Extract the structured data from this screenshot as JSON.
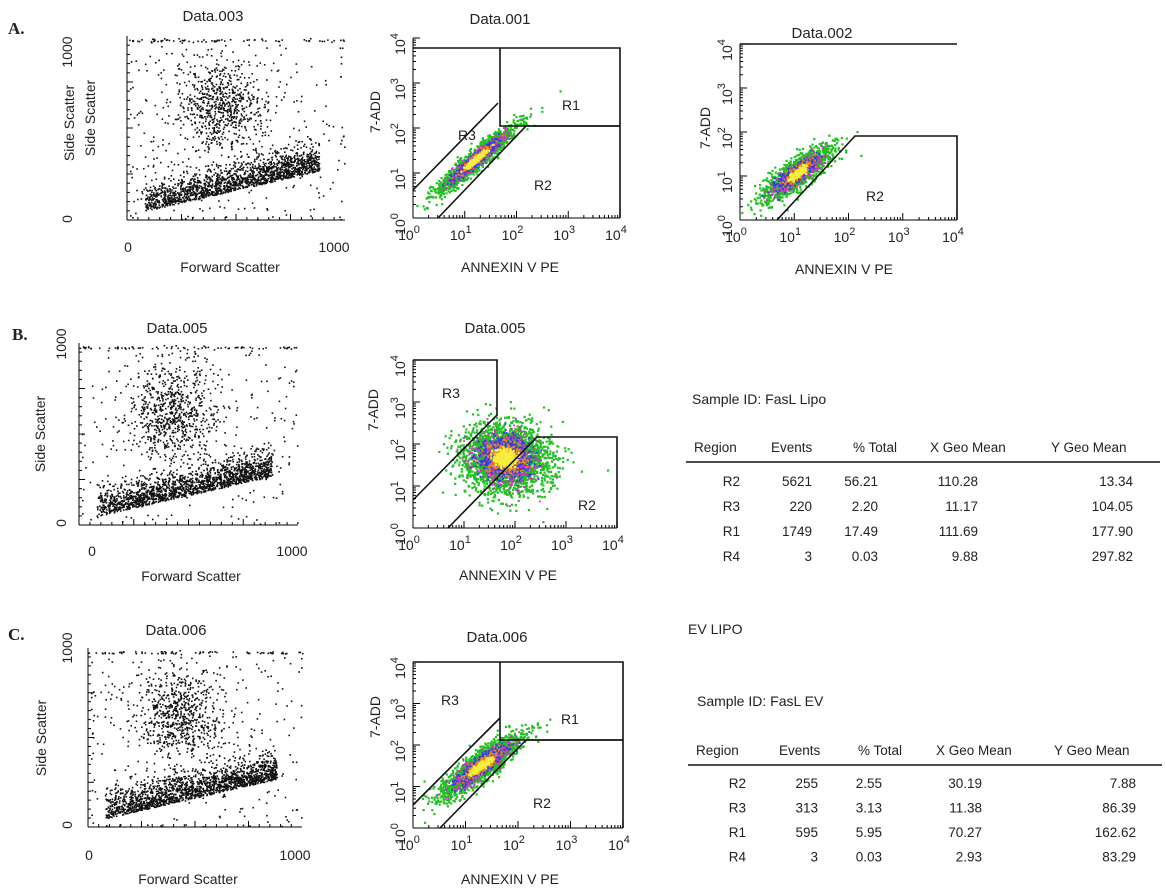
{
  "colors": {
    "dots": "#111111",
    "density_green": "#22c022",
    "density_magenta": "#d030c0",
    "density_blue": "#2840e0",
    "density_orange": "#f08a1c",
    "density_yellow": "#f6ee3a",
    "gate_line": "#111111"
  },
  "panels": {
    "A": {
      "letter": "A."
    },
    "B": {
      "letter": "B."
    },
    "C": {
      "letter": "C."
    }
  },
  "scatter_labels": {
    "A": {
      "title": "Data.003",
      "xlabel": "Forward Scatter",
      "ylabel": "Side Scatter",
      "ylabel2": "Side Scatter",
      "x_ticks": [
        "0",
        "1000"
      ],
      "y_ticks": [
        "0",
        "1000"
      ]
    },
    "B": {
      "title": "Data.005",
      "xlabel": "Forward Scatter",
      "ylabel": "Side Scatter",
      "x_ticks": [
        "0",
        "1000"
      ],
      "y_ticks": [
        "0",
        "1000"
      ]
    },
    "C": {
      "title": "Data.006",
      "xlabel": "Forward Scatter",
      "ylabel": "Side Scatter",
      "x_ticks": [
        "0",
        "1000"
      ],
      "y_ticks": [
        "0",
        "1000"
      ]
    }
  },
  "annexin_labels": {
    "A1": {
      "title": "Data.001",
      "xlabel": "ANNEXIN V PE",
      "ylabel": "7-ADD",
      "regions": [
        "R1",
        "R2",
        "R3"
      ]
    },
    "A2": {
      "title": "Data.002",
      "xlabel": "ANNEXIN V PE",
      "ylabel": "7-ADD",
      "regions": [
        "R2"
      ]
    },
    "B": {
      "title": "Data.005",
      "xlabel": "ANNEXIN V PE",
      "ylabel": "7-ADD",
      "regions": [
        "R3",
        "R2"
      ]
    },
    "C": {
      "title": "Data.006",
      "xlabel": "ANNEXIN V PE",
      "ylabel": "7-ADD",
      "regions": [
        "R3",
        "R1",
        "R2"
      ]
    }
  },
  "tick_base": "10",
  "tick_exps": [
    "0",
    "1",
    "2",
    "3",
    "4"
  ],
  "ev_lipo_label": "EV LIPO",
  "tables": [
    {
      "sample_id": "Sample ID: FasL Lipo",
      "headers": [
        "Region",
        "Events",
        "% Total",
        "X Geo Mean",
        "Y Geo Mean"
      ],
      "rows": [
        [
          "R2",
          "5621",
          "56.21",
          "110.28",
          "13.34"
        ],
        [
          "R3",
          "220",
          "2.20",
          "11.17",
          "104.05"
        ],
        [
          "R1",
          "1749",
          "17.49",
          "111.69",
          "177.90"
        ],
        [
          "R4",
          "3",
          "0.03",
          "9.88",
          "297.82"
        ]
      ]
    },
    {
      "sample_id": "Sample ID: FasL EV",
      "headers": [
        "Region",
        "Events",
        "% Total",
        "X Geo Mean",
        "Y Geo Mean"
      ],
      "rows": [
        [
          "R2",
          "255",
          "2.55",
          "30.19",
          "7.88"
        ],
        [
          "R3",
          "313",
          "3.13",
          "11.38",
          "86.39"
        ],
        [
          "R1",
          "595",
          "5.95",
          "70.27",
          "162.62"
        ],
        [
          "R4",
          "3",
          "0.03",
          "2.93",
          "83.29"
        ]
      ]
    }
  ],
  "chart_data": [
    {
      "type": "scatter",
      "title": "Data.003",
      "xlabel": "Forward Scatter",
      "ylabel": "Side Scatter",
      "xlim": [
        0,
        1000
      ],
      "ylim": [
        0,
        1000
      ]
    },
    {
      "type": "scatter",
      "title": "Data.001",
      "xlabel": "ANNEXIN V PE",
      "ylabel": "7-ADD",
      "x_scale": "log",
      "y_scale": "log",
      "xlim": [
        1,
        10000
      ],
      "ylim": [
        1,
        10000
      ],
      "regions": [
        "R1",
        "R2",
        "R3"
      ]
    },
    {
      "type": "scatter",
      "title": "Data.002",
      "xlabel": "ANNEXIN V PE",
      "ylabel": "7-ADD",
      "x_scale": "log",
      "y_scale": "log",
      "xlim": [
        1,
        10000
      ],
      "ylim": [
        1,
        10000
      ],
      "regions": [
        "R2"
      ]
    },
    {
      "type": "scatter",
      "title": "Data.005",
      "xlabel": "Forward Scatter",
      "ylabel": "Side Scatter",
      "xlim": [
        0,
        1000
      ],
      "ylim": [
        0,
        1000
      ]
    },
    {
      "type": "scatter",
      "title": "Data.005",
      "xlabel": "ANNEXIN V PE",
      "ylabel": "7-ADD",
      "x_scale": "log",
      "y_scale": "log",
      "xlim": [
        1,
        10000
      ],
      "ylim": [
        1,
        10000
      ],
      "regions": [
        "R3",
        "R2"
      ]
    },
    {
      "type": "scatter",
      "title": "Data.006",
      "xlabel": "Forward Scatter",
      "ylabel": "Side Scatter",
      "xlim": [
        0,
        1000
      ],
      "ylim": [
        0,
        1000
      ]
    },
    {
      "type": "scatter",
      "title": "Data.006",
      "xlabel": "ANNEXIN V PE",
      "ylabel": "7-ADD",
      "x_scale": "log",
      "y_scale": "log",
      "xlim": [
        1,
        10000
      ],
      "ylim": [
        1,
        10000
      ],
      "regions": [
        "R3",
        "R1",
        "R2"
      ]
    }
  ]
}
